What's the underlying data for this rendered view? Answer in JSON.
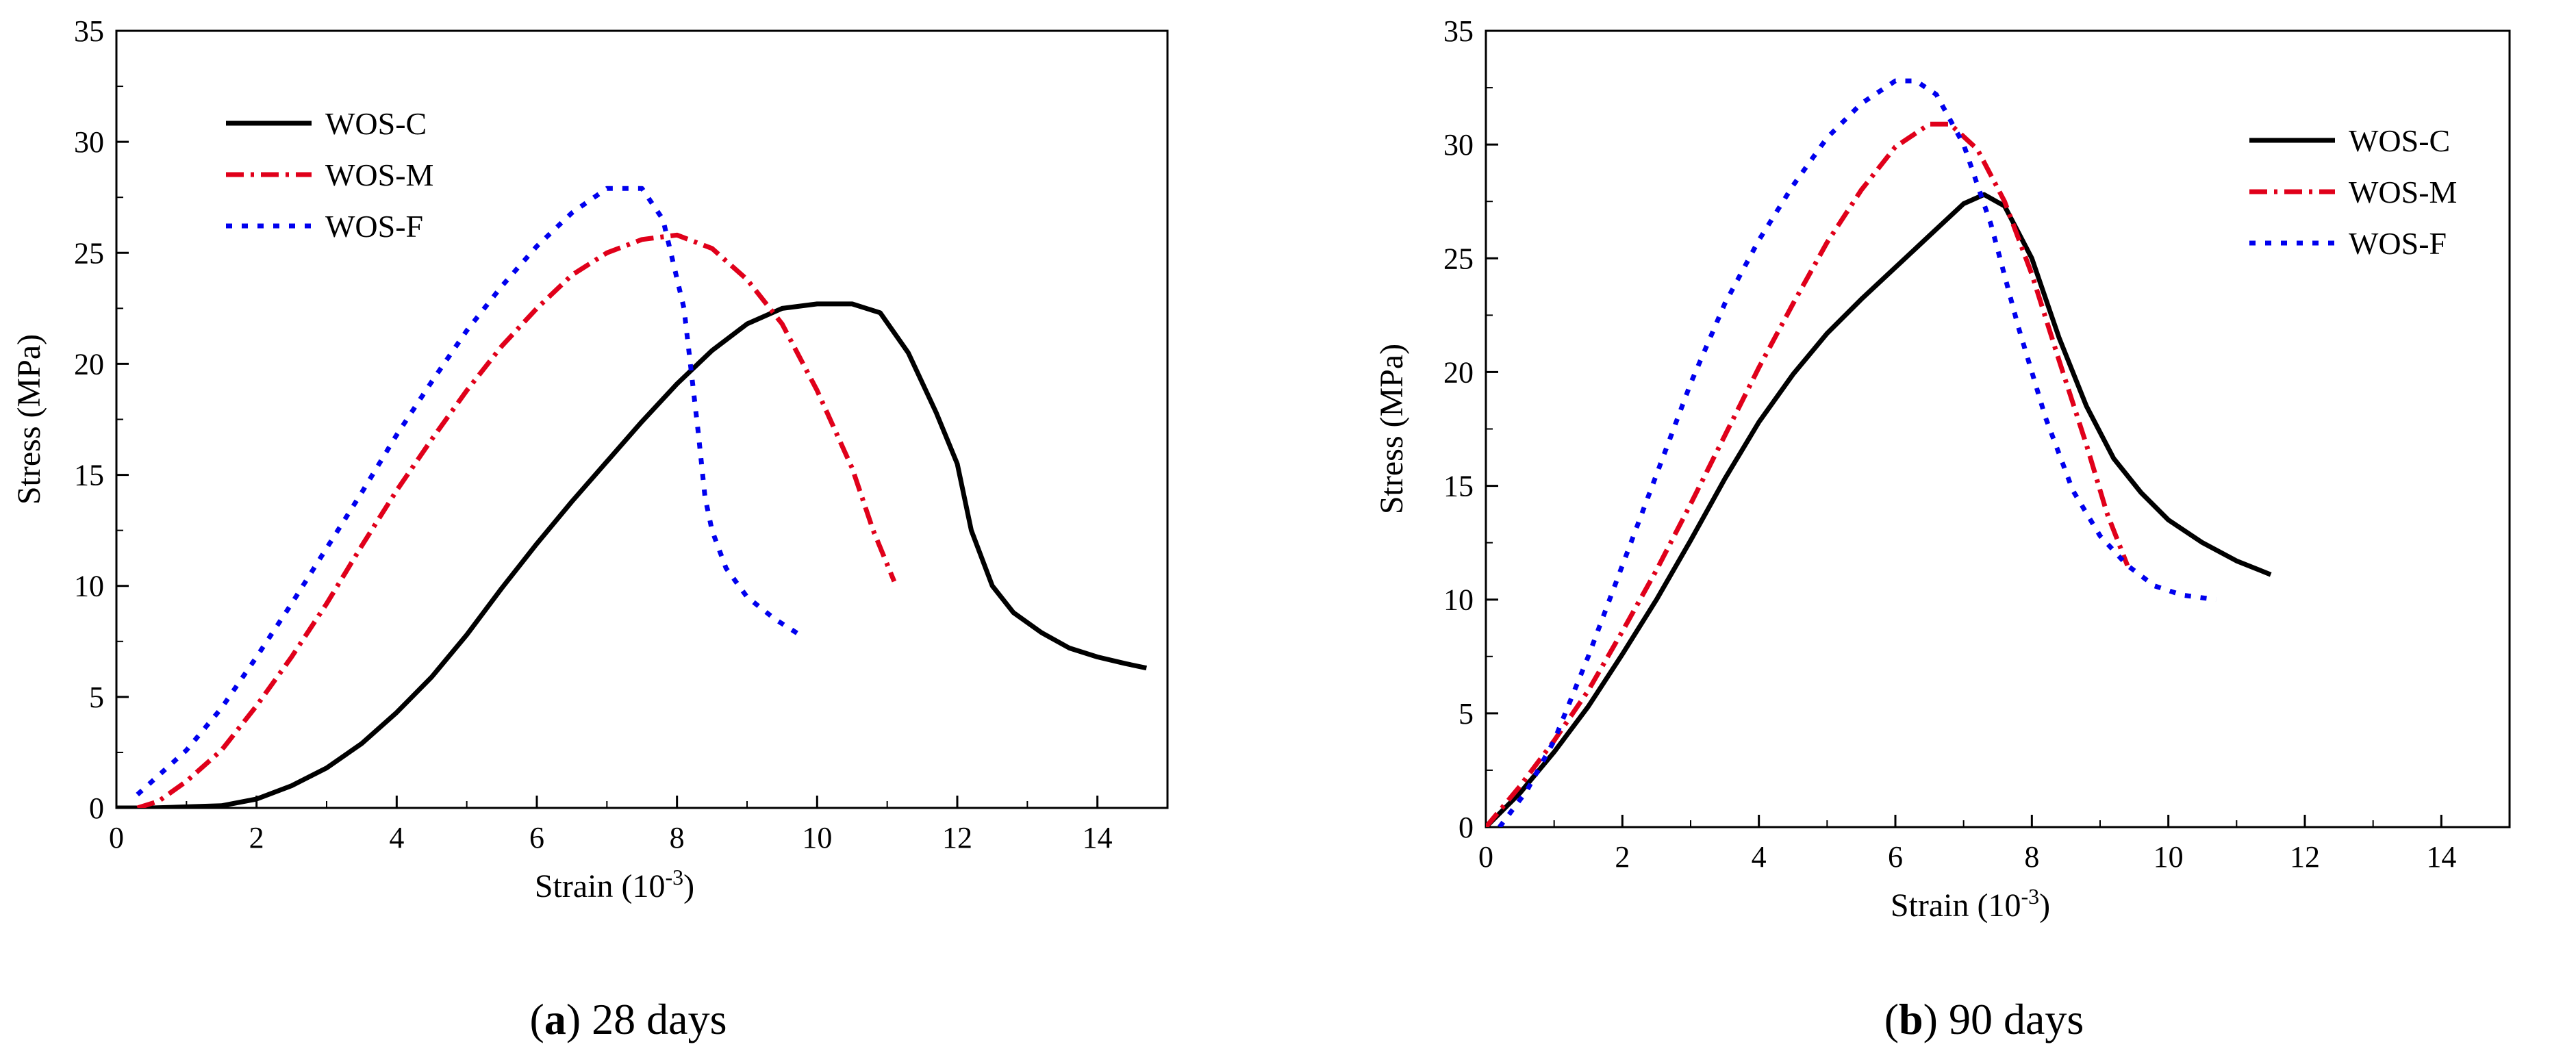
{
  "chart_data": [
    {
      "type": "line",
      "id": "a",
      "caption": {
        "letter": "a",
        "text": " 28 days"
      },
      "xlabel": "Strain (10",
      "xlabel_sup": "-3",
      "xlabel_end": ")",
      "ylabel": "Stress (MPa)",
      "xlim": [
        0,
        15
      ],
      "ylim": [
        0,
        35
      ],
      "xticks": [
        0,
        2,
        4,
        6,
        8,
        10,
        12,
        14
      ],
      "yticks": [
        0,
        5,
        10,
        15,
        20,
        25,
        30,
        35
      ],
      "legend_position": "upper-left",
      "series": [
        {
          "name": "WOS-C",
          "color": "#000000",
          "style": "solid",
          "x": [
            0,
            0.5,
            1,
            1.5,
            2,
            2.5,
            3,
            3.5,
            4,
            4.5,
            5,
            5.5,
            6,
            6.5,
            7,
            7.5,
            8,
            8.5,
            9,
            9.5,
            10,
            10.5,
            10.9,
            11.3,
            11.7,
            12.0,
            12.2,
            12.5,
            12.8,
            13.2,
            13.6,
            14.0,
            14.4,
            14.7
          ],
          "y": [
            0,
            0,
            0.05,
            0.1,
            0.4,
            1.0,
            1.8,
            2.9,
            4.3,
            5.9,
            7.8,
            9.9,
            11.9,
            13.8,
            15.6,
            17.4,
            19.1,
            20.6,
            21.8,
            22.5,
            22.7,
            22.7,
            22.3,
            20.5,
            17.8,
            15.5,
            12.5,
            10.0,
            8.8,
            7.9,
            7.2,
            6.8,
            6.5,
            6.3
          ]
        },
        {
          "name": "WOS-M",
          "color": "#e0001a",
          "style": "dashdot",
          "x": [
            0.3,
            0.6,
            1.0,
            1.5,
            2,
            2.5,
            3,
            3.5,
            4,
            4.5,
            5,
            5.5,
            6,
            6.5,
            7,
            7.5,
            8,
            8.5,
            9,
            9.5,
            10,
            10.5,
            10.8,
            11.1
          ],
          "y": [
            0,
            0.3,
            1.2,
            2.6,
            4.6,
            6.8,
            9.2,
            11.8,
            14.3,
            16.6,
            18.8,
            20.8,
            22.5,
            24.0,
            25.0,
            25.6,
            25.8,
            25.2,
            23.8,
            21.8,
            18.8,
            15.3,
            12.5,
            10.2
          ]
        },
        {
          "name": "WOS-F",
          "color": "#0000ee",
          "style": "dotted",
          "x": [
            0.3,
            1.0,
            1.5,
            2,
            2.5,
            3,
            3.5,
            4,
            4.5,
            5,
            5.5,
            6,
            6.5,
            7,
            7.5,
            7.8,
            8.1,
            8.3,
            8.4,
            8.5,
            8.7,
            9.0,
            9.4,
            9.8
          ],
          "y": [
            0.6,
            2.6,
            4.5,
            6.8,
            9.2,
            11.7,
            14.2,
            16.8,
            19.2,
            21.5,
            23.5,
            25.3,
            26.8,
            27.9,
            27.9,
            26.5,
            22.5,
            17.0,
            14.0,
            12.5,
            10.8,
            9.5,
            8.5,
            7.7
          ]
        }
      ]
    },
    {
      "type": "line",
      "id": "b",
      "caption": {
        "letter": "b",
        "text": " 90 days"
      },
      "xlabel": "Strain (10",
      "xlabel_sup": "-3",
      "xlabel_end": ")",
      "ylabel": "Stress (MPa)",
      "xlim": [
        0,
        15
      ],
      "ylim": [
        0,
        35
      ],
      "xticks": [
        0,
        2,
        4,
        6,
        8,
        10,
        12,
        14
      ],
      "yticks": [
        0,
        5,
        10,
        15,
        20,
        25,
        30,
        35
      ],
      "legend_position": "upper-right",
      "series": [
        {
          "name": "WOS-C",
          "color": "#000000",
          "style": "solid",
          "x": [
            0,
            0.5,
            1,
            1.5,
            2,
            2.5,
            3,
            3.5,
            4,
            4.5,
            5,
            5.5,
            6,
            6.5,
            7,
            7.3,
            7.6,
            8.0,
            8.4,
            8.8,
            9.2,
            9.6,
            10.0,
            10.5,
            11.0,
            11.5
          ],
          "y": [
            0,
            1.5,
            3.3,
            5.3,
            7.6,
            10.0,
            12.6,
            15.3,
            17.8,
            19.9,
            21.7,
            23.2,
            24.6,
            26.0,
            27.4,
            27.8,
            27.3,
            25.0,
            21.5,
            18.5,
            16.2,
            14.7,
            13.5,
            12.5,
            11.7,
            11.1
          ]
        },
        {
          "name": "WOS-M",
          "color": "#e0001a",
          "style": "dashdot",
          "x": [
            0,
            0.5,
            1,
            1.5,
            2,
            2.5,
            3,
            3.5,
            4,
            4.5,
            5,
            5.5,
            6,
            6.5,
            6.8,
            7.2,
            7.6,
            8.0,
            8.4,
            8.8,
            9.1,
            9.4
          ],
          "y": [
            0,
            1.8,
            3.8,
            6.0,
            8.6,
            11.3,
            14.2,
            17.2,
            20.2,
            23.0,
            25.7,
            28.0,
            29.9,
            30.9,
            30.9,
            29.8,
            27.5,
            24.3,
            20.5,
            16.8,
            13.8,
            11.5
          ]
        },
        {
          "name": "WOS-F",
          "color": "#0000ee",
          "style": "dotted",
          "x": [
            0.2,
            0.6,
            1.0,
            1.5,
            2,
            2.5,
            3,
            3.5,
            4,
            4.5,
            5,
            5.5,
            6,
            6.3,
            6.6,
            7.0,
            7.4,
            7.8,
            8.2,
            8.6,
            9.0,
            9.4,
            9.8,
            10.2,
            10.7
          ],
          "y": [
            0,
            1.6,
            3.8,
            7.5,
            11.5,
            15.5,
            19.5,
            23.0,
            25.8,
            28.2,
            30.3,
            31.8,
            32.8,
            32.8,
            32.2,
            30.0,
            26.5,
            22.0,
            18.0,
            14.8,
            12.8,
            11.5,
            10.6,
            10.2,
            10.0
          ]
        }
      ]
    }
  ]
}
